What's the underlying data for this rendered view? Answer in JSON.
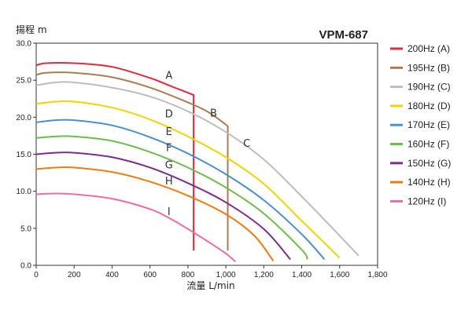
{
  "chart_data": {
    "type": "line",
    "title": "VPM-687",
    "xlabel": "流量 L/min",
    "ylabel": "揚程 m",
    "xlim": [
      0,
      1800
    ],
    "ylim": [
      0,
      30
    ],
    "x_ticks": [
      "0",
      "200",
      "400",
      "600",
      "800",
      "1,000",
      "1,200",
      "1,400",
      "1,600",
      "1,800"
    ],
    "x_tick_values": [
      0,
      200,
      400,
      600,
      800,
      1000,
      1200,
      1400,
      1600,
      1800
    ],
    "y_ticks": [
      "0.0",
      "5.0",
      "10.0",
      "15.0",
      "20.0",
      "25.0",
      "30.0"
    ],
    "y_tick_values": [
      0,
      5,
      10,
      15,
      20,
      25,
      30
    ],
    "grid": false,
    "legend_position": "right",
    "series": [
      {
        "name": "200Hz (A)",
        "label": "A",
        "color": "#e8283a",
        "x": [
          0,
          50,
          200,
          400,
          600,
          700,
          800,
          830,
          830
        ],
        "y": [
          27.0,
          27.3,
          27.3,
          26.8,
          25.3,
          24.3,
          23.3,
          23.0,
          2.0
        ]
      },
      {
        "name": "195Hz (B)",
        "label": "B",
        "color": "#a97d4f",
        "x": [
          0,
          50,
          200,
          400,
          600,
          800,
          900,
          1000,
          1010,
          1010
        ],
        "y": [
          25.7,
          26.0,
          26.0,
          25.4,
          24.0,
          22.0,
          20.8,
          19.0,
          18.6,
          2.0
        ]
      },
      {
        "name": "190Hz (C)",
        "label": "C",
        "color": "#bdbdbd",
        "x": [
          0,
          100,
          200,
          400,
          600,
          800,
          1000,
          1200,
          1400,
          1600,
          1700
        ],
        "y": [
          24.3,
          24.7,
          24.7,
          24.0,
          22.8,
          20.8,
          18.0,
          14.3,
          9.3,
          4.0,
          1.3
        ]
      },
      {
        "name": "180Hz (D)",
        "label": "D",
        "color": "#f5d300",
        "x": [
          0,
          100,
          200,
          400,
          600,
          800,
          1000,
          1200,
          1400,
          1600
        ],
        "y": [
          21.8,
          22.1,
          22.1,
          21.3,
          19.7,
          17.4,
          14.6,
          11.0,
          6.0,
          1.0
        ]
      },
      {
        "name": "170Hz (E)",
        "label": "E",
        "color": "#4a8fd0",
        "x": [
          0,
          100,
          200,
          400,
          600,
          800,
          1000,
          1200,
          1400,
          1520
        ],
        "y": [
          19.3,
          19.6,
          19.6,
          18.9,
          17.3,
          15.1,
          12.3,
          8.8,
          4.2,
          0.8
        ]
      },
      {
        "name": "160Hz (F)",
        "label": "F",
        "color": "#6abf46",
        "x": [
          0,
          100,
          200,
          400,
          600,
          800,
          1000,
          1200,
          1400,
          1430
        ],
        "y": [
          17.2,
          17.4,
          17.4,
          16.8,
          15.3,
          13.2,
          10.5,
          7.0,
          2.1,
          0.8
        ]
      },
      {
        "name": "150Hz (G)",
        "label": "G",
        "color": "#7d2b8e",
        "x": [
          0,
          100,
          200,
          400,
          600,
          800,
          1000,
          1200,
          1340
        ],
        "y": [
          15.0,
          15.2,
          15.2,
          14.6,
          13.2,
          11.1,
          8.5,
          4.9,
          0.8
        ]
      },
      {
        "name": "140Hz (H)",
        "label": "H",
        "color": "#ee7d0f",
        "x": [
          0,
          100,
          200,
          400,
          600,
          800,
          1000,
          1150,
          1250
        ],
        "y": [
          13.0,
          13.2,
          13.2,
          12.6,
          11.3,
          9.4,
          6.9,
          4.0,
          0.6
        ]
      },
      {
        "name": "120Hz (I)",
        "label": "I",
        "color": "#f06aa4",
        "x": [
          0,
          100,
          200,
          400,
          600,
          700,
          800,
          900,
          1000,
          1050
        ],
        "y": [
          9.6,
          9.7,
          9.6,
          9.0,
          7.6,
          6.4,
          4.9,
          3.3,
          1.6,
          0.5
        ]
      }
    ],
    "curve_label_positions": [
      {
        "label": "A",
        "x": 700,
        "y": 25.2
      },
      {
        "label": "B",
        "x": 935,
        "y": 20.1
      },
      {
        "label": "C",
        "x": 1110,
        "y": 16.0
      },
      {
        "label": "D",
        "x": 700,
        "y": 20.0
      },
      {
        "label": "E",
        "x": 700,
        "y": 17.6
      },
      {
        "label": "F",
        "x": 700,
        "y": 15.4
      },
      {
        "label": "G",
        "x": 700,
        "y": 13.1
      },
      {
        "label": "H",
        "x": 700,
        "y": 10.9
      },
      {
        "label": "I",
        "x": 700,
        "y": 6.8
      }
    ]
  }
}
